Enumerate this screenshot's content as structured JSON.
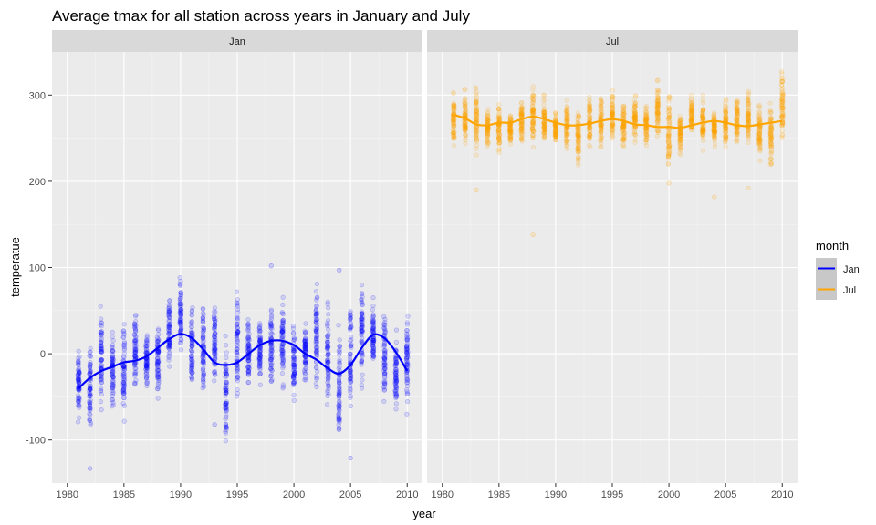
{
  "chart_data": {
    "type": "scatter",
    "title": "Average tmax for all station across years in January and July",
    "xlabel": "year",
    "ylabel": "temperatue",
    "xlim": [
      1980,
      2010
    ],
    "ylim": [
      -150,
      350
    ],
    "x_ticks": [
      "1980",
      "1985",
      "1990",
      "1995",
      "2000",
      "2005",
      "2010"
    ],
    "y_ticks": [
      "-100",
      "0",
      "100",
      "200",
      "300"
    ],
    "grid": true,
    "legend": {
      "title": "month",
      "placement": "right",
      "entries": [
        {
          "label": "Jan",
          "color": "#0000ff"
        },
        {
          "label": "Jul",
          "color": "#ffa500"
        }
      ]
    },
    "panels": [
      {
        "strip": "Jan",
        "color": "#0000ff",
        "years": [
          1981,
          1982,
          1983,
          1984,
          1985,
          1986,
          1987,
          1988,
          1989,
          1990,
          1991,
          1992,
          1993,
          1994,
          1995,
          1996,
          1997,
          1998,
          1999,
          2000,
          2001,
          2002,
          2003,
          2004,
          2005,
          2006,
          2007,
          2008,
          2009,
          2010
        ],
        "point_range": {
          "min": [
            -85,
            -95,
            -65,
            -65,
            -80,
            -45,
            -45,
            -55,
            -30,
            -10,
            -50,
            -55,
            -40,
            -105,
            -60,
            -45,
            -45,
            -50,
            -40,
            -60,
            -35,
            -45,
            -85,
            -105,
            -75,
            -40,
            -30,
            -65,
            -75,
            -70
          ],
          "max": [
            15,
            20,
            55,
            25,
            40,
            55,
            30,
            40,
            70,
            90,
            65,
            65,
            65,
            25,
            75,
            55,
            50,
            65,
            70,
            45,
            35,
            90,
            70,
            35,
            80,
            90,
            65,
            55,
            30,
            50
          ]
        },
        "outliers": [
          [
            1982,
            -133
          ],
          [
            1993,
            -82
          ],
          [
            1998,
            102
          ],
          [
            2004,
            97
          ],
          [
            2005,
            -121
          ]
        ],
        "smooth": {
          "x": [
            1981,
            1982,
            1983,
            1984,
            1985,
            1986,
            1987,
            1988,
            1989,
            1990,
            1991,
            1992,
            1993,
            1994,
            1995,
            1996,
            1997,
            1998,
            1999,
            2000,
            2001,
            2002,
            2003,
            2004,
            2005,
            2006,
            2007,
            2008,
            2009,
            2010
          ],
          "y": [
            -40,
            -28,
            -20,
            -15,
            -10,
            -8,
            -3,
            7,
            17,
            23,
            18,
            5,
            -10,
            -13,
            -10,
            0,
            10,
            15,
            15,
            10,
            0,
            -7,
            -17,
            -23,
            -13,
            7,
            22,
            18,
            2,
            -20
          ]
        }
      },
      {
        "strip": "Jul",
        "color": "#ffa500",
        "years": [
          1981,
          1982,
          1983,
          1984,
          1985,
          1986,
          1987,
          1988,
          1989,
          1990,
          1991,
          1992,
          1993,
          1994,
          1995,
          1996,
          1997,
          1998,
          1999,
          2000,
          2001,
          2002,
          2003,
          2004,
          2005,
          2006,
          2007,
          2008,
          2009,
          2010
        ],
        "point_range": {
          "min": [
            240,
            238,
            230,
            235,
            225,
            240,
            240,
            235,
            240,
            240,
            230,
            210,
            230,
            240,
            240,
            235,
            245,
            240,
            245,
            205,
            230,
            250,
            235,
            240,
            235,
            240,
            240,
            220,
            215,
            245
          ],
          "max": [
            305,
            310,
            320,
            285,
            300,
            285,
            300,
            315,
            300,
            285,
            300,
            290,
            305,
            300,
            310,
            295,
            300,
            290,
            325,
            305,
            285,
            305,
            300,
            285,
            305,
            300,
            310,
            300,
            295,
            335
          ]
        },
        "outliers": [
          [
            1983,
            190
          ],
          [
            1988,
            138
          ],
          [
            2000,
            198
          ],
          [
            2004,
            182
          ],
          [
            2007,
            192
          ]
        ],
        "smooth": {
          "x": [
            1981,
            1982,
            1983,
            1984,
            1985,
            1986,
            1987,
            1988,
            1989,
            1990,
            1991,
            1992,
            1993,
            1994,
            1995,
            1996,
            1997,
            1998,
            1999,
            2000,
            2001,
            2002,
            2003,
            2004,
            2005,
            2006,
            2007,
            2008,
            2009,
            2010
          ],
          "y": [
            277,
            273,
            266,
            265,
            268,
            268,
            272,
            275,
            272,
            268,
            265,
            265,
            267,
            270,
            272,
            270,
            266,
            265,
            263,
            263,
            262,
            265,
            268,
            270,
            268,
            265,
            264,
            266,
            268,
            270
          ]
        }
      }
    ]
  }
}
